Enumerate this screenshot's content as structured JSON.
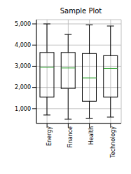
{
  "chart_data": {
    "type": "box",
    "title": "Sample Plot",
    "categories": [
      "Energy",
      "Finance",
      "Health",
      "Technology"
    ],
    "min": [
      700,
      500,
      550,
      600
    ],
    "q1": [
      1550,
      1950,
      1350,
      1550
    ],
    "median": [
      2950,
      2920,
      2450,
      2900
    ],
    "q3": [
      3650,
      3650,
      3600,
      3500
    ],
    "max": [
      5000,
      4500,
      4950,
      4900
    ],
    "color": "#000000",
    "ylim": [
      300,
      5200
    ],
    "yticks": [
      {
        "value": 1000,
        "label": "1,000"
      },
      {
        "value": 2000,
        "label": "2,000"
      },
      {
        "value": 3000,
        "label": "3,000"
      },
      {
        "value": 4000,
        "label": "4,000"
      },
      {
        "value": 5000,
        "label": "5,000"
      }
    ],
    "grid": true
  }
}
